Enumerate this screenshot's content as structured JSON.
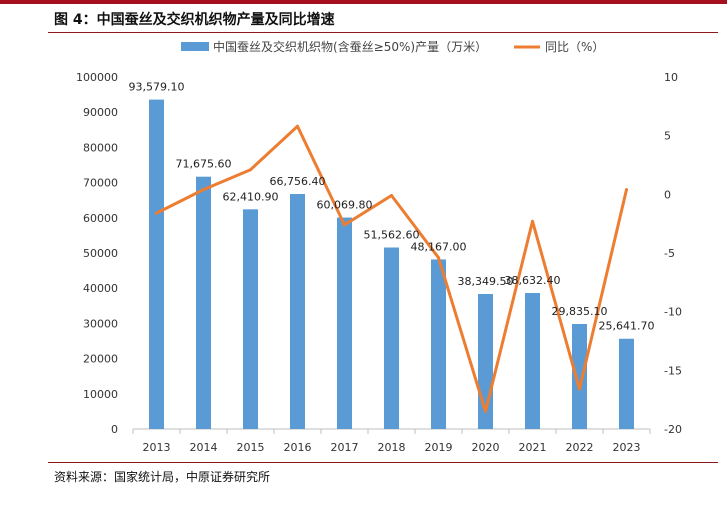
{
  "header": {
    "title": "图 4：中国蚕丝及交织机织物产量及同比增速"
  },
  "footer": {
    "source": "资料来源：国家统计局，中原证券研究所"
  },
  "colors": {
    "bar": "#5b9bd5",
    "line": "#ed7d31",
    "accent": "#a50f1f"
  },
  "chart_data": {
    "type": "bar",
    "title": "图 4：中国蚕丝及交织机织物产量及同比增速",
    "categories": [
      "2013",
      "2014",
      "2015",
      "2016",
      "2017",
      "2018",
      "2019",
      "2020",
      "2021",
      "2022",
      "2023"
    ],
    "series": [
      {
        "name": "中国蚕丝及交织机织物(含蚕丝≥50%)产量（万米）",
        "type": "bar",
        "axis": "left",
        "values": [
          93579.1,
          71675.6,
          62410.9,
          66756.4,
          60069.8,
          51562.6,
          48167.0,
          38349.5,
          38632.4,
          29835.1,
          25641.7
        ],
        "labels": [
          "93,579.10",
          "71,675.60",
          "62,410.90",
          "66,756.40",
          "60,069.80",
          "51,562.60",
          "48,167.00",
          "38,349.50",
          "38,632.40",
          "29,835.10",
          "25,641.70"
        ]
      },
      {
        "name": "同比（%）",
        "type": "line",
        "axis": "right",
        "values": [
          -1.6,
          0.4,
          2.1,
          5.8,
          -2.6,
          -0.1,
          -5.4,
          -18.5,
          -2.3,
          -16.6,
          0.4
        ]
      }
    ],
    "ylim_left": [
      0,
      100000
    ],
    "yticks_left": [
      "0",
      "10000",
      "20000",
      "30000",
      "40000",
      "50000",
      "60000",
      "70000",
      "80000",
      "90000",
      "100000"
    ],
    "ylim_right": [
      -20,
      10
    ],
    "yticks_right": [
      "-20",
      "-15",
      "-10",
      "-5",
      "0",
      "5",
      "10"
    ],
    "legend_position": "top",
    "grid": false
  }
}
